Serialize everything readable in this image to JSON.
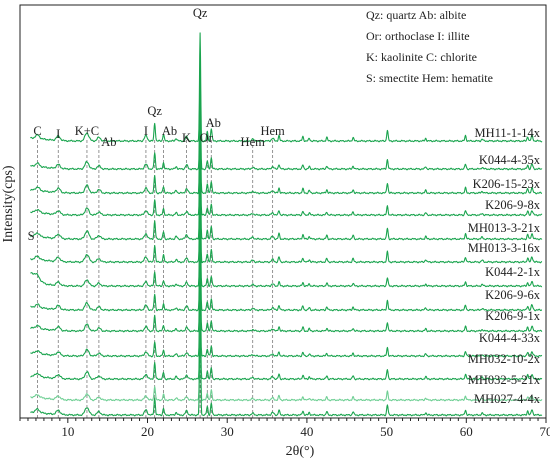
{
  "chart_data": {
    "type": "line",
    "title": "",
    "xlabel": "2θ(°)",
    "ylabel": "Intensity(cps)",
    "xlim": [
      4,
      70
    ],
    "x_ticks": [
      10,
      20,
      30,
      40,
      50,
      60,
      70
    ],
    "grid": false,
    "legend_placement": "top-right",
    "legend_lines": [
      "Qz: quartz  Ab: albite",
      "Or: orthoclase I: illite",
      "K: kaolinite C: chlorite",
      "S: smectite Hem: hematite"
    ],
    "line_color": "#1aa44e",
    "faint_line_color": "#6fcf94",
    "series": [
      {
        "name": "MH11-1-14x"
      },
      {
        "name": "K044-4-35x"
      },
      {
        "name": "K206-15-23x"
      },
      {
        "name": "K206-9-8x"
      },
      {
        "name": "MH013-3-21x"
      },
      {
        "name": "MH013-3-16x"
      },
      {
        "name": "K044-2-1x"
      },
      {
        "name": "K206-9-6x"
      },
      {
        "name": "K206-9-1x"
      },
      {
        "name": "K044-4-33x"
      },
      {
        "name": "MH032-10-2x"
      },
      {
        "name": "MH032-5-21x"
      },
      {
        "name": "MH027-4-4x"
      }
    ],
    "peak_annotations": [
      {
        "label": "C",
        "x": 6.2
      },
      {
        "label": "I",
        "x": 8.8
      },
      {
        "label": "K+C",
        "x": 12.4
      },
      {
        "label": "Ab",
        "x": 13.9
      },
      {
        "label": "I",
        "x": 19.8
      },
      {
        "label": "Qz",
        "x": 20.9
      },
      {
        "label": "Ab",
        "x": 22.0
      },
      {
        "label": "K",
        "x": 24.9
      },
      {
        "label": "Qz",
        "x": 26.6
      },
      {
        "label": "Ab",
        "x": 28.0
      },
      {
        "label": "Or",
        "x": 27.5
      },
      {
        "label": "Hem",
        "x": 33.2
      },
      {
        "label": "Hem",
        "x": 35.7
      },
      {
        "label": "S",
        "x": 5.4
      }
    ]
  }
}
